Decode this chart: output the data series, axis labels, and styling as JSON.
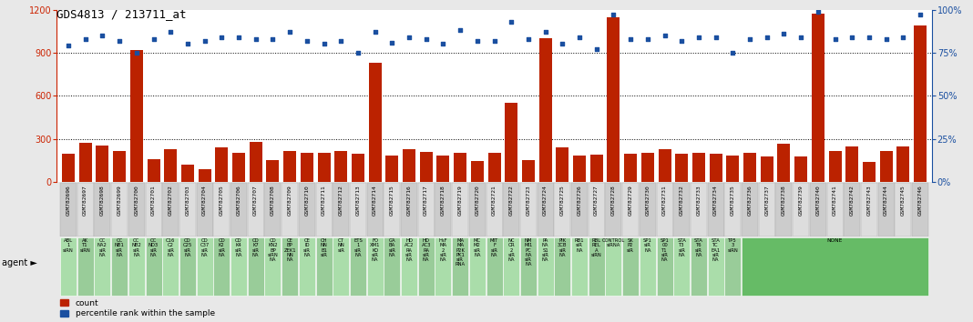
{
  "title": "GDS4813 / 213711_at",
  "gsm_ids": [
    "GSM782696",
    "GSM782697",
    "GSM782698",
    "GSM782699",
    "GSM782700",
    "GSM782701",
    "GSM782702",
    "GSM782703",
    "GSM782704",
    "GSM782705",
    "GSM782706",
    "GSM782707",
    "GSM782708",
    "GSM782709",
    "GSM782710",
    "GSM782711",
    "GSM782712",
    "GSM782713",
    "GSM782714",
    "GSM782715",
    "GSM782716",
    "GSM782717",
    "GSM782718",
    "GSM782719",
    "GSM782720",
    "GSM782721",
    "GSM782722",
    "GSM782723",
    "GSM782724",
    "GSM782725",
    "GSM782726",
    "GSM782727",
    "GSM782728",
    "GSM782729",
    "GSM782730",
    "GSM782731",
    "GSM782732",
    "GSM782733",
    "GSM782734",
    "GSM782735",
    "GSM782736",
    "GSM782737",
    "GSM782738",
    "GSM782739",
    "GSM782740",
    "GSM782741",
    "GSM782742",
    "GSM782743",
    "GSM782744",
    "GSM782745",
    "GSM782746"
  ],
  "counts": [
    195,
    270,
    255,
    215,
    920,
    160,
    230,
    120,
    90,
    240,
    200,
    280,
    155,
    215,
    200,
    200,
    215,
    195,
    830,
    185,
    230,
    210,
    185,
    200,
    145,
    200,
    550,
    155,
    1000,
    240,
    185,
    190,
    1150,
    195,
    200,
    225,
    195,
    200,
    195,
    185,
    200,
    175,
    265,
    180,
    1170,
    215,
    245,
    140,
    215,
    245,
    1090
  ],
  "percentiles": [
    79,
    83,
    85,
    82,
    75,
    83,
    87,
    80,
    82,
    84,
    84,
    83,
    83,
    87,
    82,
    80,
    82,
    75,
    87,
    81,
    84,
    83,
    80,
    88,
    82,
    82,
    93,
    83,
    87,
    80,
    84,
    77,
    97,
    83,
    83,
    85,
    82,
    84,
    84,
    75,
    83,
    84,
    86,
    84,
    99,
    83,
    84,
    84,
    83,
    84,
    97
  ],
  "agent_groups": [
    [
      0,
      0,
      "ABL\n1\nsiRN"
    ],
    [
      1,
      1,
      "AK\nT1\nsiRN"
    ],
    [
      2,
      2,
      "CC\nNA2\nsiR\nNA"
    ],
    [
      3,
      3,
      "CC\nNB1\nsiR\nNA"
    ],
    [
      4,
      4,
      "CC\nNB2\nsiR\nNA"
    ],
    [
      5,
      5,
      "CC\nND3\nsiR\nNA"
    ],
    [
      6,
      6,
      "C16\nC2\nsiR\nNA"
    ],
    [
      7,
      7,
      "CD\nC25\nsiR\nNA"
    ],
    [
      8,
      8,
      "CD\nC37\nsiR\nNA"
    ],
    [
      9,
      9,
      "CD\nK2\nsiR\nNA"
    ],
    [
      10,
      10,
      "CD\nK4\nsiR\nNA"
    ],
    [
      11,
      11,
      "CD\nK7\nsiR\nNA"
    ],
    [
      12,
      12,
      "CD\nKN2\nBP\nsiRN\nNA"
    ],
    [
      13,
      13,
      "CE\nBP\nZEK1\nNN\nNA"
    ],
    [
      14,
      14,
      "CE\nID\nsiR\nNA"
    ],
    [
      15,
      15,
      "CH\nNN\nB1\nsiR"
    ],
    [
      16,
      16,
      "CT\nNN\nsiR"
    ],
    [
      17,
      17,
      "ETS\n1\nsiR\nNA"
    ],
    [
      18,
      18,
      "FO\nXM1\nKO\nsiR\nNA"
    ],
    [
      19,
      19,
      "GA\nBA\nsiR\nNA"
    ],
    [
      20,
      20,
      "HD\nAC2\nRA\nsiR\nNA"
    ],
    [
      21,
      21,
      "HD\nAC3\nRA\nsiR\nNA"
    ],
    [
      22,
      22,
      "HsF\nMA\n2\nsiR\nNA"
    ],
    [
      23,
      23,
      "MA\nMA\nP2K\nPK1\nsiR\nRNA"
    ],
    [
      24,
      24,
      "MC\nM2\nsiR\nNA"
    ],
    [
      25,
      25,
      "MIT\nF\nsiR\nNA"
    ],
    [
      26,
      26,
      "NC\nOR\n2\nsiR\nNA"
    ],
    [
      27,
      27,
      "NM\nMI1\nPC\nNA\nsiR\nNA"
    ],
    [
      28,
      28,
      "PA\nNA\nS1\nsiR\nNA"
    ],
    [
      29,
      29,
      "PIK\n3CB\nsiR\nNA"
    ],
    [
      30,
      30,
      "RB1\nsiR\nNA"
    ],
    [
      31,
      31,
      "RBL\nREL\nA\nsiRN"
    ],
    [
      32,
      32,
      "CONTROL\nsiRNA"
    ],
    [
      33,
      33,
      "SK\nP2\nsiR"
    ],
    [
      34,
      34,
      "SP1\nsiR\nNA"
    ],
    [
      35,
      35,
      "SP1\n00\nT1\nsiR\nNA"
    ],
    [
      36,
      36,
      "STA\nT3\nsiR\nNA"
    ],
    [
      37,
      37,
      "STA\nT6\nsiR\nNA"
    ],
    [
      38,
      38,
      "STA\nTC\nEA1\nsiR\nNA"
    ],
    [
      39,
      39,
      "TP5\n3\nsiRN"
    ],
    [
      40,
      50,
      "NONE"
    ]
  ],
  "bar_color": "#bb2200",
  "dot_color": "#1a4fa0",
  "bg_color": "#e8e8e8",
  "plot_bg": "#ffffff",
  "gsm_box_even": "#cccccc",
  "gsm_box_odd": "#dddddd",
  "agent_bg": "#77cc77",
  "agent_cell_even": "#aaddaa",
  "agent_cell_odd": "#99cc99",
  "none_bg": "#66bb66",
  "grid_dotted_color": "#555555",
  "left_tick_color": "#cc2200",
  "right_tick_color": "#1a4fa0",
  "yticks_left": [
    0,
    300,
    600,
    900,
    1200
  ],
  "yticks_right": [
    0,
    25,
    50,
    75,
    100
  ],
  "ylim_left": [
    0,
    1200
  ],
  "ylim_right": [
    0,
    100
  ]
}
